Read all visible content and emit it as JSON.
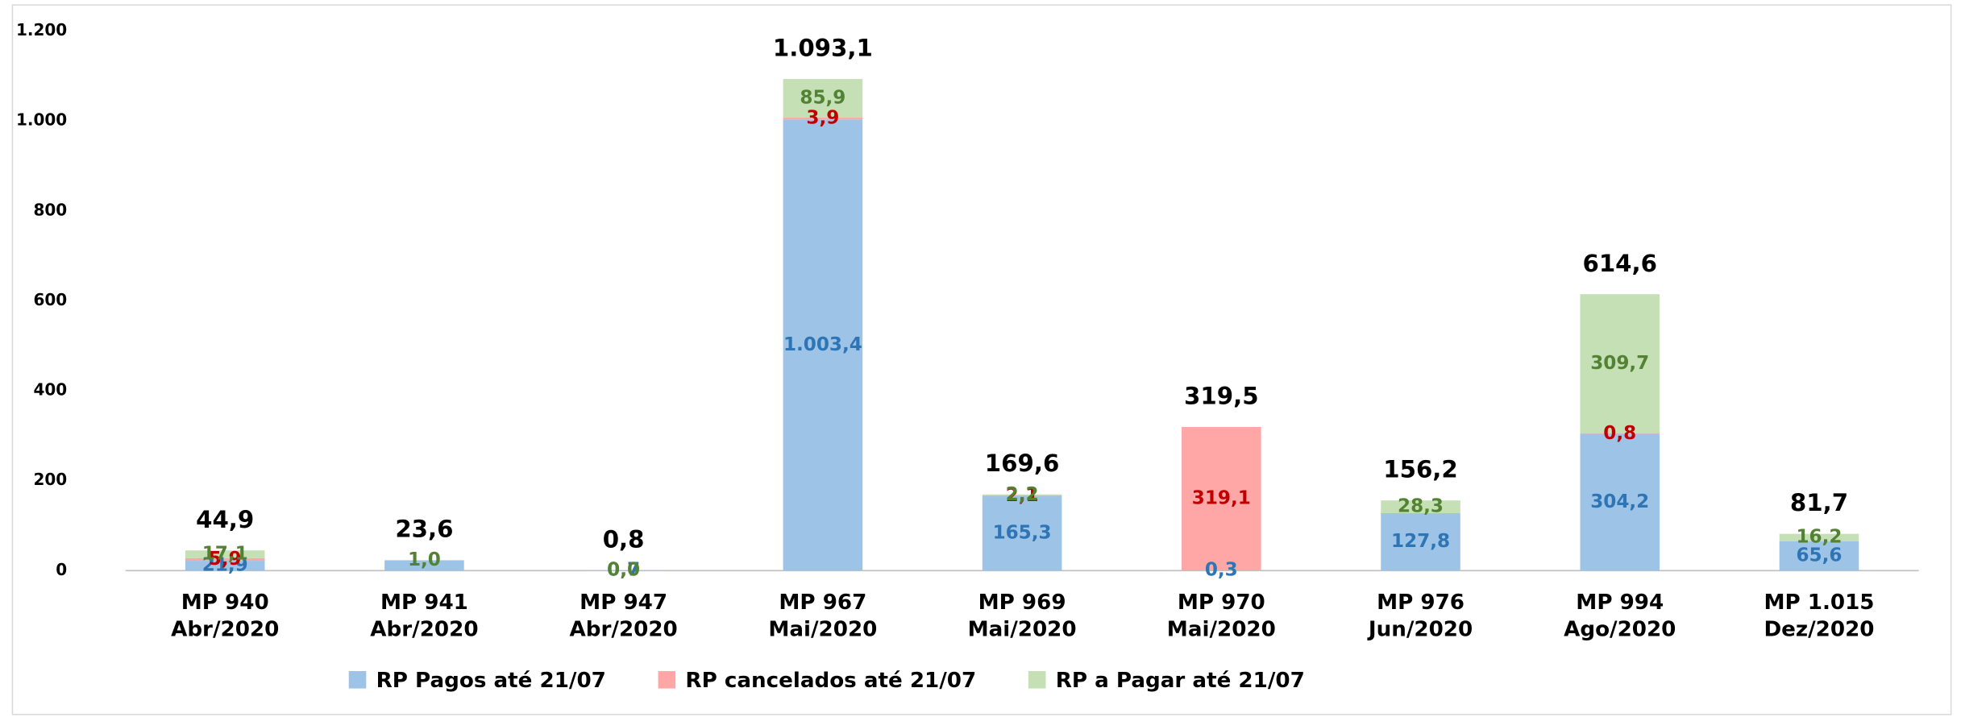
{
  "chart_data": {
    "type": "stacked_bar",
    "categories": [
      [
        "MP 940",
        "Abr/2020"
      ],
      [
        "MP 941",
        "Abr/2020"
      ],
      [
        "MP 947",
        "Abr/2020"
      ],
      [
        "MP 967",
        "Mai/2020"
      ],
      [
        "MP 969",
        "Mai/2020"
      ],
      [
        "MP 970",
        "Mai/2020"
      ],
      [
        "MP 976",
        "Jun/2020"
      ],
      [
        "MP 994",
        "Ago/2020"
      ],
      [
        "MP 1.015",
        "Dez/2020"
      ]
    ],
    "series": [
      {
        "name": "RP Pagos até 21/07",
        "color": "#9dc3e6",
        "label_color": "#2e75b6",
        "values": [
          21.9,
          22.6,
          0.7,
          1003.4,
          165.3,
          0.3,
          127.8,
          304.2,
          65.6
        ],
        "value_labels": [
          "21,9",
          null,
          "0,7",
          "1.003,4",
          "165,3",
          "0,3",
          "127,8",
          "304,2",
          "65,6"
        ]
      },
      {
        "name": "RP cancelados até 21/07",
        "color": "#ffa7a7",
        "label_color": "#c00000",
        "values": [
          5.9,
          0,
          0.1,
          3.9,
          2.1,
          319.1,
          0,
          0.8,
          0
        ],
        "value_labels": [
          "5,9",
          null,
          null,
          "3,9",
          "2,1",
          "319,1",
          null,
          "0,8",
          null
        ]
      },
      {
        "name": "RP a Pagar até 21/07",
        "color": "#c5e0b4",
        "label_color": "#548235",
        "values": [
          17.1,
          1.0,
          0.0,
          85.9,
          2.2,
          0,
          28.3,
          309.7,
          16.2
        ],
        "value_labels": [
          "17,1",
          "1,0",
          "0,0",
          "85,9",
          "2,2",
          null,
          "28,3",
          "309,7",
          "16,2"
        ]
      }
    ],
    "totals": {
      "values": [
        44.9,
        23.6,
        0.8,
        1093.1,
        169.6,
        319.5,
        156.2,
        614.6,
        81.7
      ],
      "value_labels": [
        "44,9",
        "23,6",
        "0,8",
        "1.093,1",
        "169,6",
        "319,5",
        "156,2",
        "614,6",
        "81,7"
      ]
    },
    "ylim": [
      0,
      1200
    ],
    "yticks": [
      0,
      200,
      400,
      600,
      800,
      {
        "value": 1000,
        "label": "1.000"
      },
      {
        "value": 1200,
        "label": "1.200"
      }
    ],
    "legend": "bottom"
  }
}
